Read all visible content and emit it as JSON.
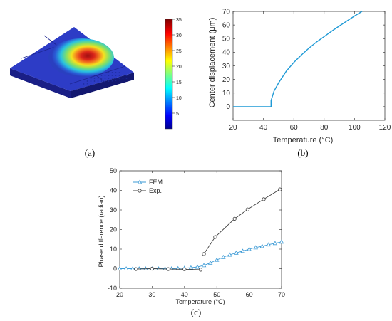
{
  "panel_labels": [
    "(a)",
    "(b)",
    "(c)"
  ],
  "colorbar": {
    "ticks": [
      5,
      10,
      15,
      20,
      25,
      30,
      35
    ],
    "range": [
      0,
      35
    ],
    "colormap": "jet"
  },
  "chart_data": [
    {
      "panel": "b",
      "type": "line",
      "xlabel": "Temperature (°C)",
      "ylabel": "Center displacement (μm)",
      "xlim": [
        20,
        120
      ],
      "ylim": [
        -10,
        70
      ],
      "xticks": [
        20,
        40,
        60,
        80,
        100,
        120
      ],
      "yticks": [
        0,
        10,
        20,
        30,
        40,
        50,
        60,
        70
      ],
      "grid": false,
      "color": "#1f9ad6",
      "series": [
        {
          "x": [
            20,
            45,
            45,
            47,
            50,
            55,
            60,
            65,
            70,
            75,
            80,
            85,
            90,
            95,
            100,
            105
          ],
          "y": [
            0,
            0,
            4.5,
            11.5,
            17.5,
            26,
            32.5,
            38,
            43,
            47.5,
            51.5,
            55.5,
            59.3,
            63,
            66.6,
            70
          ]
        }
      ]
    },
    {
      "panel": "c",
      "type": "line",
      "xlabel": "Temperature (°C)",
      "ylabel": "Phase difference (radian)",
      "xlim": [
        20,
        70
      ],
      "ylim": [
        -10,
        50
      ],
      "xticks": [
        20,
        30,
        40,
        50,
        60,
        70
      ],
      "yticks": [
        -10,
        0,
        10,
        20,
        30,
        40,
        50
      ],
      "grid": false,
      "legend": "top-left",
      "series": [
        {
          "name": "FEM",
          "marker": "triangle",
          "color": "#3d9bd6",
          "x": [
            20,
            22,
            24,
            26,
            28,
            30,
            32,
            34,
            36,
            38,
            40,
            42,
            44,
            46,
            48,
            50,
            52,
            54,
            56,
            58,
            60,
            62,
            64,
            66,
            68,
            70
          ],
          "y": [
            0,
            0,
            0,
            0,
            0,
            0,
            0,
            0,
            0,
            0.1,
            0.3,
            0.5,
            0.9,
            1.7,
            3.0,
            4.5,
            5.9,
            7.1,
            8.1,
            9.0,
            10.0,
            10.8,
            11.5,
            12.3,
            13.0,
            13.7
          ]
        },
        {
          "name": "Exp.",
          "marker": "circle",
          "color": "#404040",
          "segments": [
            {
              "x": [
                25,
                30,
                35,
                40,
                45
              ],
              "y": [
                -0.2,
                0,
                -0.2,
                -0.3,
                -0.5
              ]
            },
            {
              "x": [
                46,
                49.5,
                55.5,
                59.5,
                64.5,
                69.5
              ],
              "y": [
                7.5,
                16.2,
                25.5,
                30.3,
                35.5,
                40.5
              ]
            }
          ]
        }
      ]
    }
  ]
}
